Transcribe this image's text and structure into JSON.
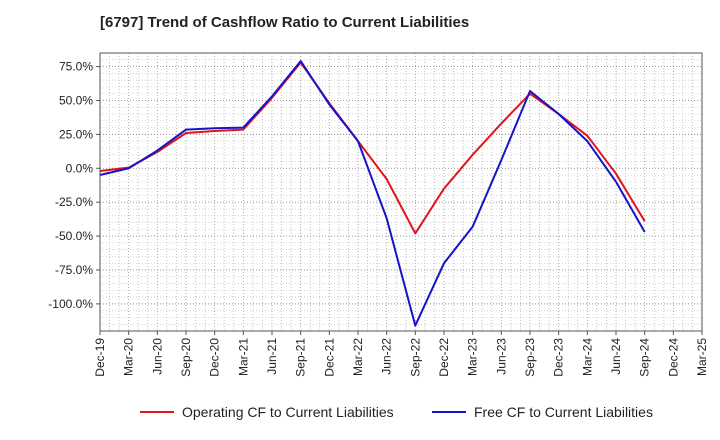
{
  "chart_data": {
    "type": "line",
    "title": "[6797]  Trend of Cashflow Ratio to Current Liabilities",
    "xlabel": "",
    "ylabel": "",
    "categories": [
      "Dec-19",
      "Mar-20",
      "Jun-20",
      "Sep-20",
      "Dec-20",
      "Mar-21",
      "Jun-21",
      "Sep-21",
      "Dec-21",
      "Mar-22",
      "Jun-22",
      "Sep-22",
      "Dec-22",
      "Mar-23",
      "Jun-23",
      "Sep-23",
      "Dec-23",
      "Mar-24",
      "Jun-24",
      "Sep-24",
      "Dec-24",
      "Mar-25"
    ],
    "ylim": [
      -120,
      85
    ],
    "yticks": [
      75,
      50,
      25,
      0,
      -25,
      -50,
      -75,
      -100
    ],
    "ytick_labels": [
      "75.0%",
      "50.0%",
      "25.0%",
      "0.0%",
      "-25.0%",
      "-50.0%",
      "-75.0%",
      "-100.0%"
    ],
    "grid": true,
    "legend_position": "bottom",
    "series": [
      {
        "name": "Operating CF to Current Liabilities",
        "color": "#e0161c",
        "values": [
          -2,
          0.5,
          12,
          26,
          27.5,
          28.5,
          52,
          78,
          48,
          20,
          -8,
          -48,
          -15,
          10,
          33,
          55,
          40,
          24,
          -4,
          -39,
          null,
          null
        ]
      },
      {
        "name": "Free CF to Current Liabilities",
        "color": "#1414c8",
        "values": [
          -5,
          0,
          13,
          28.5,
          29.5,
          30,
          53,
          79,
          47,
          20,
          -37,
          -116,
          -70,
          -43,
          6,
          57,
          40,
          20,
          -10,
          -47,
          null,
          null
        ]
      }
    ]
  }
}
